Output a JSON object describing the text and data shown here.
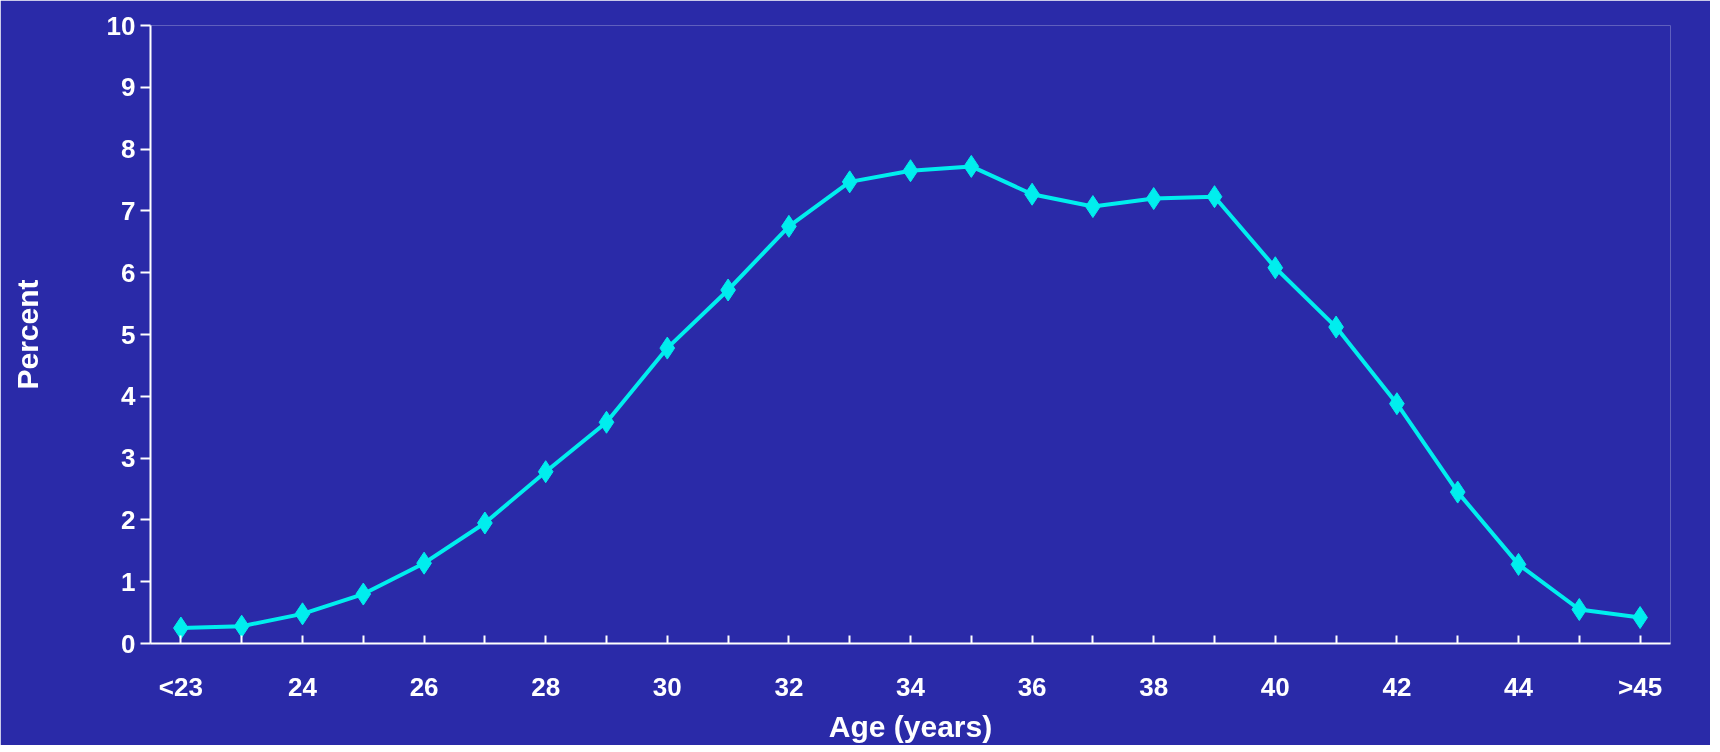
{
  "chart_data": {
    "type": "line",
    "xlabel": "Age (years)",
    "ylabel": "Percent",
    "categories": [
      "<23",
      null,
      "24",
      null,
      "26",
      null,
      "28",
      null,
      "30",
      null,
      "32",
      null,
      "34",
      null,
      "36",
      null,
      "38",
      null,
      "40",
      null,
      "42",
      null,
      "44",
      null,
      ">45"
    ],
    "series": [
      {
        "color": "#00eeee",
        "values": [
          0.25,
          0.28,
          0.48,
          0.8,
          1.3,
          1.95,
          2.78,
          3.58,
          4.78,
          5.72,
          6.75,
          7.47,
          7.65,
          7.72,
          7.27,
          7.07,
          7.2,
          7.23,
          6.08,
          5.12,
          3.88,
          2.45,
          1.28,
          0.55,
          0.42
        ]
      }
    ],
    "ylim": [
      0,
      10
    ],
    "yticks": [
      0,
      1,
      2,
      3,
      4,
      5,
      6,
      7,
      8,
      9,
      10
    ],
    "grid": false,
    "marker": "diamond",
    "line_style": "solid"
  }
}
